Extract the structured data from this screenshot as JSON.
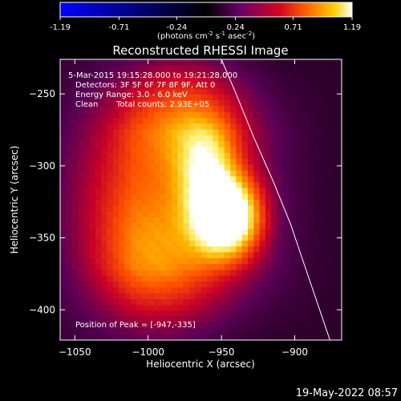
{
  "colorbar": {
    "ticks": [
      "-1.19",
      "-0.71",
      "-0.24",
      "0.24",
      "0.71",
      "1.19"
    ],
    "tick_values": [
      -1.19,
      -0.71,
      -0.24,
      0.24,
      0.71,
      1.19
    ],
    "range": [
      -1.19,
      1.19
    ],
    "units_prefix": "(photons cm",
    "units_exp1": "-2",
    "units_mid": " s",
    "units_exp2": "-1",
    "units_mid2": " asec",
    "units_exp3": "-2",
    "units_suffix": ")"
  },
  "colors": {
    "background": "#000000",
    "text": "#ffffff",
    "limb": "#ffffff",
    "colormap_stops": [
      "#0000ff",
      "#000000",
      "#6b0068",
      "#d60020",
      "#ff6a00",
      "#ffd000",
      "#ffffff"
    ]
  },
  "annotations": {
    "time_range": "5-Mar-2015 19:15:28.000 to 19:21:28.000",
    "detectors": "Detectors: 3F 5F 6F 7F 8F 9F, Att 0",
    "energy": "Energy Range: 3.0 - 6.0 keV",
    "clean_label": "Clean",
    "total_counts": "Total counts: 2.93E+05",
    "peak": "Position of Peak = [-947,-335]",
    "footer_date": "19-May-2022 08:57"
  },
  "chart_data": {
    "type": "heatmap",
    "title": "Reconstructed RHESSI Image",
    "xlabel": "Heliocentric X (arcsec)",
    "ylabel": "Heliocentric Y (arcsec)",
    "xlim": [
      -1060,
      -868
    ],
    "ylim": [
      -421,
      -226
    ],
    "x_ticks": [
      -1050,
      -1000,
      -950,
      -900
    ],
    "x_tick_labels": [
      "−1050",
      "−1000",
      "−950",
      "−900"
    ],
    "y_ticks": [
      -250,
      -300,
      -350,
      -400
    ],
    "y_tick_labels": [
      "−250",
      "−300",
      "−350",
      "−400"
    ],
    "colormap": "thermal",
    "peak_position": [
      -947,
      -335
    ],
    "sources": [
      {
        "x": -947,
        "y": -335,
        "amp": 0.95,
        "sx": 15,
        "sy": 18
      },
      {
        "x": -960,
        "y": -300,
        "amp": 0.42,
        "sx": 14,
        "sy": 22
      },
      {
        "x": -975,
        "y": -262,
        "amp": 0.32,
        "sx": 28,
        "sy": 30
      },
      {
        "x": -990,
        "y": -370,
        "amp": 0.3,
        "sx": 32,
        "sy": 35
      },
      {
        "x": -1010,
        "y": -320,
        "amp": 0.25,
        "sx": 45,
        "sy": 55
      }
    ],
    "limb_points": [
      [
        -950,
        -226
      ],
      [
        -940,
        -250
      ],
      [
        -928,
        -280
      ],
      [
        -915,
        -310
      ],
      [
        -903,
        -340
      ],
      [
        -893,
        -370
      ],
      [
        -883,
        -400
      ],
      [
        -876,
        -421
      ]
    ]
  }
}
